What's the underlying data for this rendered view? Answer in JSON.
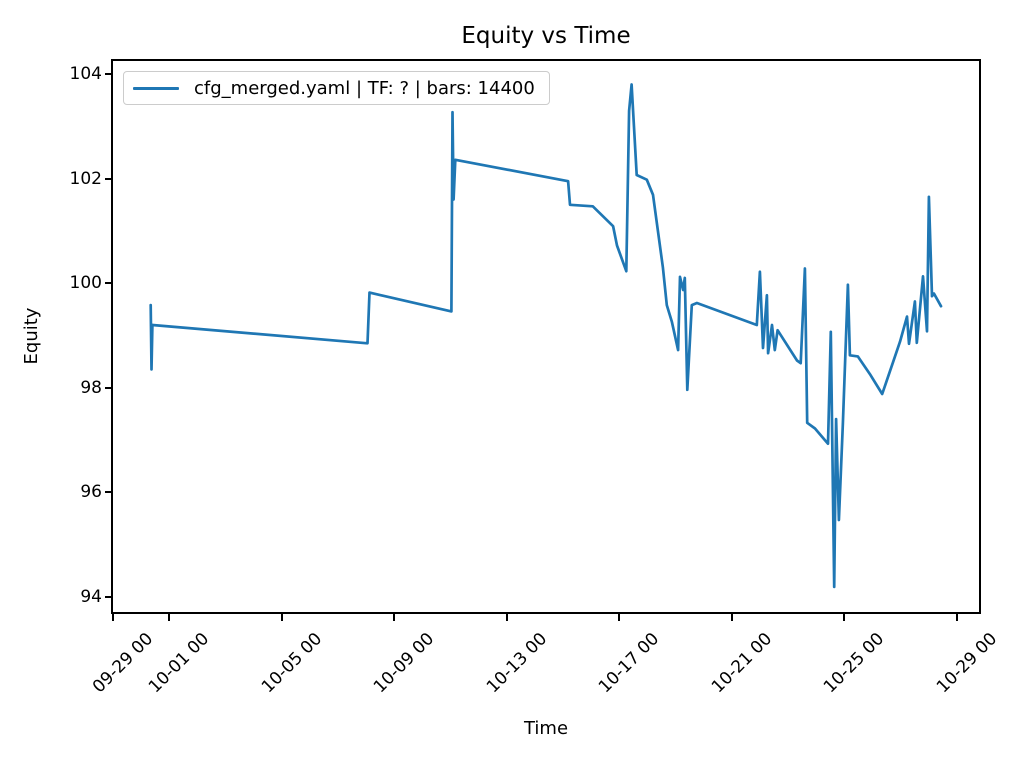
{
  "chart_data": {
    "type": "line",
    "title": "Equity vs Time",
    "xlabel": "Time",
    "ylabel": "Equity",
    "grid": false,
    "legend_position": "upper left",
    "x_unit": "days since 09-29 00 (tick labels are MM-DD HH)",
    "xlim": [
      0,
      30.79
    ],
    "ylim": [
      93.71,
      104.25
    ],
    "xticks": [
      {
        "day": 0,
        "label": "09-29 00"
      },
      {
        "day": 2,
        "label": "10-01 00"
      },
      {
        "day": 6,
        "label": "10-05 00"
      },
      {
        "day": 10,
        "label": "10-09 00"
      },
      {
        "day": 14,
        "label": "10-13 00"
      },
      {
        "day": 18,
        "label": "10-17 00"
      },
      {
        "day": 22,
        "label": "10-21 00"
      },
      {
        "day": 26,
        "label": "10-25 00"
      },
      {
        "day": 30,
        "label": "10-29 00"
      }
    ],
    "yticks": [
      {
        "value": 94,
        "label": "94"
      },
      {
        "value": 96,
        "label": "96"
      },
      {
        "value": 98,
        "label": "98"
      },
      {
        "value": 100,
        "label": "100"
      },
      {
        "value": 102,
        "label": "102"
      },
      {
        "value": 104,
        "label": "104"
      }
    ],
    "series": [
      {
        "name": "cfg_merged.yaml | TF: ? | bars: 14400",
        "color": "#1f77b4",
        "line_width": 2.7,
        "points": [
          [
            1.34,
            99.58
          ],
          [
            1.37,
            98.35
          ],
          [
            1.4,
            99.2
          ],
          [
            9.05,
            98.85
          ],
          [
            9.12,
            99.82
          ],
          [
            12.03,
            99.46
          ],
          [
            12.07,
            103.27
          ],
          [
            12.11,
            101.6
          ],
          [
            12.17,
            102.36
          ],
          [
            16.18,
            101.95
          ],
          [
            16.25,
            101.5
          ],
          [
            17.06,
            101.47
          ],
          [
            17.78,
            101.09
          ],
          [
            17.92,
            100.72
          ],
          [
            18.25,
            100.23
          ],
          [
            18.35,
            103.3
          ],
          [
            18.44,
            103.8
          ],
          [
            18.62,
            102.07
          ],
          [
            18.98,
            101.98
          ],
          [
            19.2,
            101.69
          ],
          [
            19.55,
            100.3
          ],
          [
            19.69,
            99.58
          ],
          [
            19.87,
            99.26
          ],
          [
            20.09,
            98.72
          ],
          [
            20.16,
            100.12
          ],
          [
            20.27,
            99.87
          ],
          [
            20.33,
            100.1
          ],
          [
            20.42,
            97.96
          ],
          [
            20.58,
            99.58
          ],
          [
            20.76,
            99.62
          ],
          [
            22.89,
            99.2
          ],
          [
            23.0,
            100.22
          ],
          [
            23.11,
            98.76
          ],
          [
            23.25,
            99.77
          ],
          [
            23.29,
            98.66
          ],
          [
            23.43,
            99.2
          ],
          [
            23.53,
            98.72
          ],
          [
            23.63,
            99.1
          ],
          [
            24.32,
            98.52
          ],
          [
            24.45,
            98.47
          ],
          [
            24.6,
            100.28
          ],
          [
            24.68,
            97.33
          ],
          [
            24.96,
            97.22
          ],
          [
            25.42,
            96.93
          ],
          [
            25.52,
            99.07
          ],
          [
            25.64,
            94.19
          ],
          [
            25.71,
            97.4
          ],
          [
            25.81,
            95.47
          ],
          [
            25.95,
            97.33
          ],
          [
            26.13,
            99.97
          ],
          [
            26.2,
            98.62
          ],
          [
            26.48,
            98.6
          ],
          [
            26.91,
            98.26
          ],
          [
            27.35,
            97.88
          ],
          [
            27.98,
            98.88
          ],
          [
            28.23,
            99.36
          ],
          [
            28.3,
            98.84
          ],
          [
            28.51,
            99.65
          ],
          [
            28.58,
            98.86
          ],
          [
            28.8,
            100.13
          ],
          [
            28.94,
            99.08
          ],
          [
            29.01,
            101.65
          ],
          [
            29.12,
            99.75
          ],
          [
            29.19,
            99.8
          ],
          [
            29.44,
            99.56
          ]
        ]
      }
    ]
  }
}
